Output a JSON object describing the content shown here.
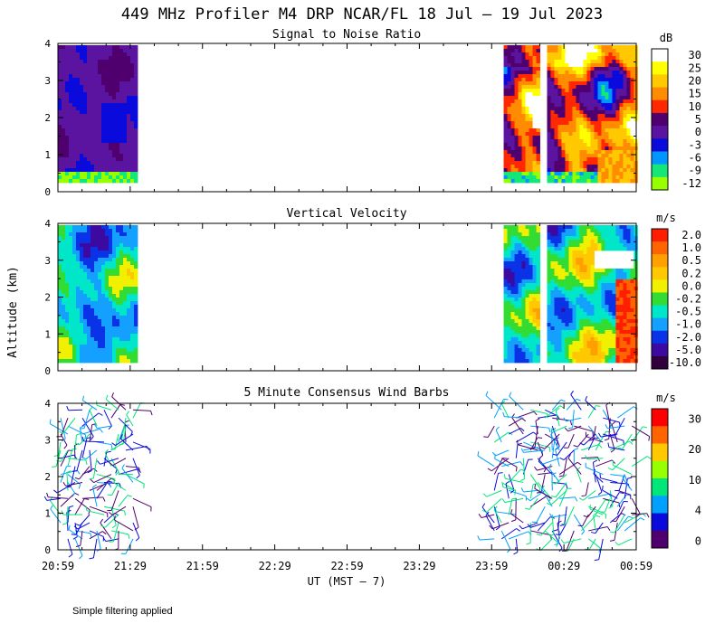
{
  "title": "449 MHz Profiler M4 DRP NCAR/FL 18 Jul – 19 Jul 2023",
  "footer": "Simple filtering applied",
  "ylabel": "Altitude (km)",
  "xlabel": "UT  (MST – 7)",
  "chart_data": [
    {
      "type": "heatmap",
      "title": "Signal to Noise Ratio",
      "ylim": [
        0,
        4
      ],
      "yticks": [
        "0",
        "1",
        "2",
        "3",
        "4"
      ],
      "xticks": [
        "20:59",
        "21:29",
        "21:59",
        "22:29",
        "22:59",
        "23:29",
        "23:59",
        "00:29",
        "00:59"
      ],
      "data_time_ranges": [
        [
          "20:59",
          "21:32"
        ],
        [
          "00:04",
          "00:19"
        ],
        [
          "00:22",
          "00:59"
        ]
      ],
      "colorbar": {
        "unit": "dB",
        "labels": [
          "30",
          "25",
          "20",
          "15",
          "10",
          "5",
          "0",
          "-3",
          "-6",
          "-9",
          "-12"
        ],
        "colors": [
          "#ffffff",
          "#ffff00",
          "#ffc800",
          "#ff8c00",
          "#ff2800",
          "#50006e",
          "#5a14a0",
          "#0a0adc",
          "#0096ff",
          "#14e678",
          "#96ff00"
        ]
      }
    },
    {
      "type": "heatmap",
      "title": "Vertical Velocity",
      "ylim": [
        0,
        4
      ],
      "yticks": [
        "0",
        "1",
        "2",
        "3",
        "4"
      ],
      "data_time_ranges": [
        [
          "20:59",
          "21:32"
        ],
        [
          "00:04",
          "00:19"
        ],
        [
          "00:22",
          "00:59"
        ]
      ],
      "colorbar": {
        "unit": "m/s",
        "labels": [
          "2.0",
          "1.0",
          "0.5",
          "0.2",
          "0.0",
          "-0.2",
          "-0.5",
          "-1.0",
          "-2.0",
          "-5.0",
          "-10.0"
        ],
        "colors": [
          "#ff1e00",
          "#ff6400",
          "#ffa000",
          "#ffc800",
          "#f0f000",
          "#32dc32",
          "#00e6c8",
          "#14a0ff",
          "#0a32e6",
          "#3c0aa0",
          "#32003c"
        ]
      }
    },
    {
      "type": "scatter",
      "title": "5 Minute Consensus Wind Barbs",
      "ylim": [
        0,
        4
      ],
      "yticks": [
        "0",
        "1",
        "2",
        "3",
        "4"
      ],
      "data_time_ranges": [
        [
          "20:59",
          "21:32"
        ],
        [
          "23:59",
          "00:59"
        ]
      ],
      "colorbar": {
        "unit": "m/s",
        "labels": [
          "30",
          "20",
          "10",
          "4",
          "0"
        ],
        "colors": [
          "#ff0000",
          "#ff6400",
          "#ffc800",
          "#96ff00",
          "#00e678",
          "#00a0ff",
          "#0a0adc",
          "#50006e"
        ]
      }
    }
  ]
}
